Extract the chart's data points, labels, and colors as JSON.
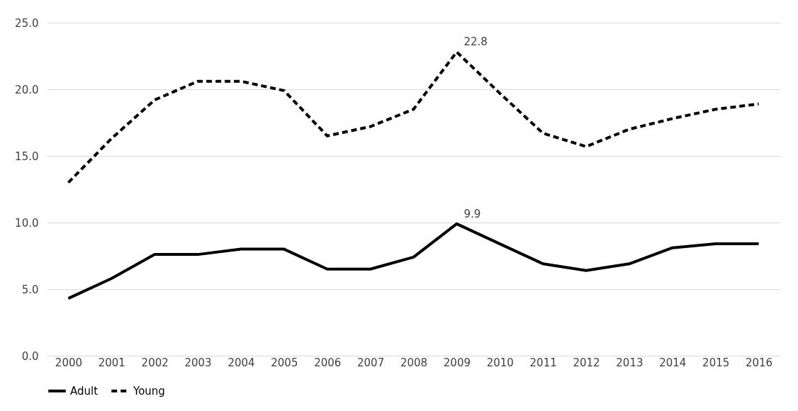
{
  "chart_data": {
    "type": "line",
    "categories": [
      "2000",
      "2001",
      "2002",
      "2003",
      "2004",
      "2005",
      "2006",
      "2007",
      "2008",
      "2009",
      "2010",
      "2011",
      "2012",
      "2013",
      "2014",
      "2015",
      "2016"
    ],
    "series": [
      {
        "name": "Adult",
        "color": "#000000",
        "line_style": "solid",
        "values": [
          4.3,
          5.8,
          7.6,
          7.6,
          8.0,
          8.0,
          6.5,
          6.5,
          7.4,
          9.9,
          8.4,
          6.9,
          6.4,
          6.9,
          8.1,
          8.4,
          8.4
        ],
        "value_labels": [
          null,
          null,
          null,
          null,
          null,
          null,
          null,
          null,
          null,
          "9.9",
          null,
          null,
          null,
          null,
          null,
          null,
          null
        ]
      },
      {
        "name": "Young",
        "color": "#000000",
        "line_style": "dashed",
        "values": [
          13.0,
          16.3,
          19.2,
          20.6,
          20.6,
          19.9,
          16.5,
          17.2,
          18.5,
          22.8,
          19.7,
          16.7,
          15.7,
          17.0,
          17.8,
          18.5,
          18.9
        ],
        "value_labels": [
          null,
          null,
          null,
          null,
          null,
          null,
          null,
          null,
          null,
          "22.8",
          null,
          null,
          null,
          null,
          null,
          null,
          null
        ]
      }
    ],
    "ylim": [
      0,
      25
    ],
    "yticks": [
      {
        "value": 0,
        "label": "0.0"
      },
      {
        "value": 5,
        "label": "5.0"
      },
      {
        "value": 10,
        "label": "10.0"
      },
      {
        "value": 15,
        "label": "15.0"
      },
      {
        "value": 20,
        "label": "20.0"
      },
      {
        "value": 25,
        "label": "25.0"
      }
    ],
    "grid": "y",
    "legend": "bottom",
    "marker": "none"
  }
}
